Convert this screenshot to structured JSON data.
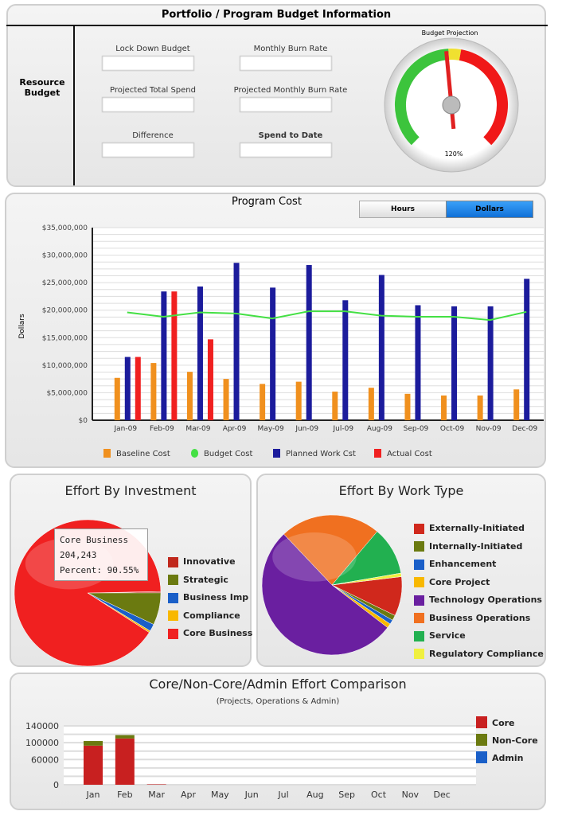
{
  "budget": {
    "title": "Portfolio / Program Budget Information",
    "side_label": "Resource Budget",
    "fields": [
      {
        "label": "Lock Down Budget",
        "value": ""
      },
      {
        "label": "Monthly Burn Rate",
        "value": ""
      },
      {
        "label": "Projected Total Spend",
        "value": ""
      },
      {
        "label": "Projected Monthly Burn Rate",
        "value": ""
      },
      {
        "label": "Difference",
        "value": ""
      },
      {
        "label": "Spend to Date",
        "value": ""
      }
    ],
    "gauge": {
      "title": "Budget Projection",
      "value_label": "120%",
      "value_percent": 120
    }
  },
  "program_cost": {
    "toggle": {
      "hours": "Hours",
      "dollars": "Dollars",
      "selected": "Dollars"
    }
  },
  "chart_data": [
    {
      "type": "bar",
      "title": "Program Cost",
      "ylabel": "Dollars",
      "ylim": [
        0,
        35000000
      ],
      "yticks": [
        "$0",
        "$5,000,000",
        "$10,000,000",
        "$15,000,000",
        "$20,000,000",
        "$25,000,000",
        "$30,000,000",
        "$35,000,000"
      ],
      "categories": [
        "Jan-09",
        "Feb-09",
        "Mar-09",
        "Apr-09",
        "May-09",
        "Jun-09",
        "Jul-09",
        "Aug-09",
        "Sep-09",
        "Oct-09",
        "Nov-09",
        "Dec-09"
      ],
      "legend": "bottom",
      "series": [
        {
          "name": "Baseline Cost",
          "type": "bar",
          "color": "#f0901e",
          "values": [
            7700000,
            10400000,
            8800000,
            7500000,
            6600000,
            7000000,
            5200000,
            5900000,
            4800000,
            4500000,
            4500000,
            5600000
          ]
        },
        {
          "name": "Budget Cost",
          "type": "line",
          "color": "#44e044",
          "values": [
            19600000,
            18800000,
            19600000,
            19400000,
            18500000,
            19800000,
            19800000,
            19000000,
            18800000,
            18800000,
            18200000,
            19700000
          ]
        },
        {
          "name": "Planned Work Cst",
          "type": "bar",
          "color": "#1c1c9c",
          "values": [
            11500000,
            23400000,
            24300000,
            28600000,
            24100000,
            28200000,
            21800000,
            26400000,
            20900000,
            20700000,
            20700000,
            25700000
          ]
        },
        {
          "name": "Actual Cost",
          "type": "bar",
          "color": "#f02020",
          "values": [
            11500000,
            23400000,
            14700000,
            null,
            null,
            null,
            null,
            null,
            null,
            null,
            null,
            null
          ]
        }
      ]
    },
    {
      "type": "pie",
      "title": "Effort By Investment",
      "legend": "right",
      "tooltip": {
        "name": "Core Business",
        "value": "204,243",
        "percent_label": "Percent:",
        "percent": "90.55%"
      },
      "slices": [
        {
          "name": "Innovative",
          "color": "#c0281c",
          "value": 0.3
        },
        {
          "name": "Strategic",
          "color": "#6b7a10",
          "value": 7.1
        },
        {
          "name": "Business Imp",
          "color": "#1a5fc8",
          "value": 1.6
        },
        {
          "name": "Compliance",
          "color": "#f8b800",
          "value": 0.4
        },
        {
          "name": "Core Business",
          "color": "#f02020",
          "value": 90.55
        }
      ]
    },
    {
      "type": "pie",
      "title": "Effort By Work Type",
      "legend": "right",
      "slices": [
        {
          "name": "Externally-Initiated",
          "color": "#d0281c",
          "value": 9
        },
        {
          "name": "Internally-Initiated",
          "color": "#6b7a10",
          "value": 1.2
        },
        {
          "name": "Enhancement",
          "color": "#1a5fc8",
          "value": 1
        },
        {
          "name": "Core Project",
          "color": "#f8b800",
          "value": 1
        },
        {
          "name": "Technology Operations",
          "color": "#6a1fa0",
          "value": 52
        },
        {
          "name": "Business Operations",
          "color": "#f07020",
          "value": 23
        },
        {
          "name": "Service",
          "color": "#22b050",
          "value": 11
        },
        {
          "name": "Regulatory Compliance",
          "color": "#f0f040",
          "value": 0.8
        }
      ]
    },
    {
      "type": "bar",
      "stacked": true,
      "title": "Core/Non-Core/Admin Effort Comparison",
      "subtitle": "(Projects, Operations & Admin)",
      "ylim": [
        0,
        140000
      ],
      "yticks": [
        "0",
        "60000",
        "100000",
        "140000"
      ],
      "legend": "right",
      "categories": [
        "Jan",
        "Feb",
        "Mar",
        "Apr",
        "May",
        "Jun",
        "Jul",
        "Aug",
        "Sep",
        "Oct",
        "Nov",
        "Dec"
      ],
      "series": [
        {
          "name": "Core",
          "color": "#c82020",
          "values": [
            93000,
            110000,
            1000,
            0,
            0,
            0,
            0,
            0,
            0,
            0,
            0,
            0
          ]
        },
        {
          "name": "Non-Core",
          "color": "#6b7a10",
          "values": [
            11000,
            8000,
            0,
            0,
            0,
            0,
            0,
            0,
            0,
            0,
            0,
            0
          ]
        },
        {
          "name": "Admin",
          "color": "#1a5fc8",
          "values": [
            0,
            0,
            0,
            0,
            0,
            0,
            0,
            0,
            0,
            0,
            0,
            0
          ]
        }
      ]
    }
  ]
}
